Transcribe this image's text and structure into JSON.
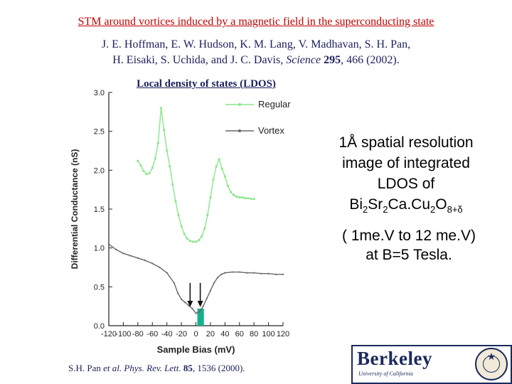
{
  "slide": {
    "title": "STM around vortices induced by a magnetic field in the superconducting state",
    "authors": {
      "line1": "J. E. Hoffman, E. W. Hudson, K. M. Lang, V. Madhavan, S. H. Pan,",
      "line2_start": "H. Eisaki, S. Uchida, and J. C. Davis,",
      "journal": "Science",
      "volume": "295",
      "pages_year": ", 466 (2002)."
    },
    "ldos_label": "Local density of states (LDOS)",
    "right_text": {
      "line1": "1Å spatial resolution",
      "line2": "image of integrated",
      "line3": "LDOS of",
      "formula_bi": "Bi",
      "formula_bi_sub": "2",
      "formula_sr": "Sr",
      "formula_sr_sub": "2",
      "formula_cacu": "Ca.Cu",
      "formula_cu_sub": "2",
      "formula_o": "O",
      "formula_o_sub": "8+δ",
      "range_line1": "( 1me.V to 12 me.V)",
      "range_line2": "at B=5 Tesla."
    },
    "citation": {
      "authors": "S.H. Pan",
      "etal": "et al.",
      "journal": "Phys. Rev. Lett.",
      "volume": "85",
      "rest": ", 1536 (2000)."
    },
    "logo": {
      "word": "Berkeley",
      "subtitle": "University of California",
      "seal_mark": "★"
    }
  },
  "chart_data": {
    "type": "line",
    "xlabel": "Sample Bias (mV)",
    "ylabel": "Differential Conductance (nS)",
    "xlim": [
      -120,
      120
    ],
    "ylim": [
      0,
      3.0
    ],
    "xticks": [
      "-120",
      "-100",
      "-80",
      "-60",
      "-40",
      "-20",
      "0",
      "20",
      "40",
      "60",
      "80",
      "100",
      "120"
    ],
    "yticks": [
      "0.0",
      "0.5",
      "1.0",
      "1.5",
      "2.0",
      "2.5",
      "3.0"
    ],
    "legend": "top-right",
    "series": [
      {
        "name": "Regular",
        "color": "#8be68b",
        "x": [
          -80,
          -76,
          -72,
          -68,
          -64,
          -60,
          -56,
          -52,
          -48,
          -44,
          -40,
          -36,
          -32,
          -28,
          -24,
          -20,
          -16,
          -12,
          -8,
          -4,
          0,
          4,
          8,
          12,
          16,
          20,
          24,
          28,
          32,
          36,
          40,
          44,
          48,
          52,
          56,
          60,
          64,
          68,
          72,
          76,
          80
        ],
        "y": [
          2.12,
          2.06,
          1.99,
          1.95,
          1.96,
          2.03,
          2.15,
          2.35,
          2.8,
          2.52,
          2.25,
          2.05,
          1.82,
          1.6,
          1.42,
          1.28,
          1.18,
          1.12,
          1.09,
          1.08,
          1.08,
          1.1,
          1.15,
          1.25,
          1.42,
          1.65,
          1.88,
          2.05,
          2.14,
          2.02,
          1.92,
          1.8,
          1.72,
          1.68,
          1.66,
          1.65,
          1.65,
          1.64,
          1.64,
          1.63,
          1.63
        ]
      },
      {
        "name": "Vortex",
        "color": "#666666",
        "x": [
          -120,
          -110,
          -100,
          -90,
          -80,
          -70,
          -60,
          -50,
          -40,
          -30,
          -25,
          -20,
          -15,
          -10,
          -5,
          0,
          5,
          10,
          15,
          20,
          25,
          30,
          35,
          40,
          50,
          60,
          70,
          80,
          90,
          100,
          110,
          120
        ],
        "y": [
          1.05,
          0.98,
          0.93,
          0.9,
          0.87,
          0.84,
          0.8,
          0.75,
          0.68,
          0.55,
          0.42,
          0.34,
          0.3,
          0.26,
          0.22,
          0.16,
          0.18,
          0.25,
          0.35,
          0.45,
          0.55,
          0.62,
          0.66,
          0.68,
          0.69,
          0.69,
          0.68,
          0.68,
          0.67,
          0.67,
          0.66,
          0.66
        ]
      }
    ],
    "arrows_at_x": [
      -8,
      6
    ],
    "highlight_band": {
      "x": [
        2,
        11
      ],
      "y": [
        0,
        0.22
      ],
      "color": "#13b18c"
    }
  }
}
